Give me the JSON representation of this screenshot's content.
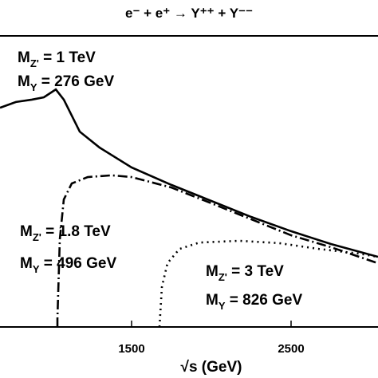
{
  "chart_data": {
    "type": "line",
    "title": "e⁻ + e⁺ → Y⁺⁺ + Y⁻⁻",
    "x_label": "√s (GeV)",
    "xlim": [
      675,
      3045
    ],
    "ylim": [
      0,
      100
    ],
    "xticks": [
      1500,
      2500
    ],
    "series": [
      {
        "style": "solid",
        "color": "#000000",
        "x": [
          675,
          775,
          875,
          950,
          1025,
          1075,
          1175,
          1300,
          1500,
          1750,
          2000,
          2250,
          2500,
          2750,
          3045
        ],
        "values": [
          75.3,
          77.3,
          78.1,
          78.9,
          81.6,
          78.1,
          67.1,
          61.6,
          54.8,
          48.8,
          43.3,
          37.8,
          32.9,
          28.5,
          24.1
        ]
      },
      {
        "style": "dashdot",
        "color": "#000000",
        "x": [
          1035,
          1035,
          1050,
          1075,
          1125,
          1225,
          1375,
          1500,
          1750,
          2000,
          2250,
          2500,
          2750,
          3045
        ],
        "values": [
          0,
          2.7,
          30.1,
          43.8,
          49.3,
          51.5,
          52.1,
          51.5,
          47.9,
          42.5,
          37.0,
          31.5,
          27.4,
          21.9
        ]
      },
      {
        "style": "dotted",
        "color": "#000000",
        "x": [
          1675,
          1690,
          1725,
          1800,
          1925,
          2175,
          2425,
          2675,
          2925,
          3045
        ],
        "values": [
          0,
          13.7,
          21.9,
          26.8,
          29.0,
          29.6,
          28.8,
          26.8,
          25.2,
          24.1
        ]
      }
    ],
    "annotations": [
      {
        "lines": [
          [
            "M",
            "Z'",
            " = 1 TeV"
          ],
          [
            "M",
            "Y",
            " = 276 GeV"
          ]
        ]
      },
      {
        "lines": [
          [
            "M",
            "Z'",
            " = 1.8 TeV"
          ],
          [
            "M",
            "Y",
            " = 496 GeV"
          ]
        ]
      },
      {
        "lines": [
          [
            "M",
            "Z'",
            " = 3 TeV"
          ],
          [
            "M",
            "Y",
            " = 826 GeV"
          ]
        ]
      }
    ]
  }
}
